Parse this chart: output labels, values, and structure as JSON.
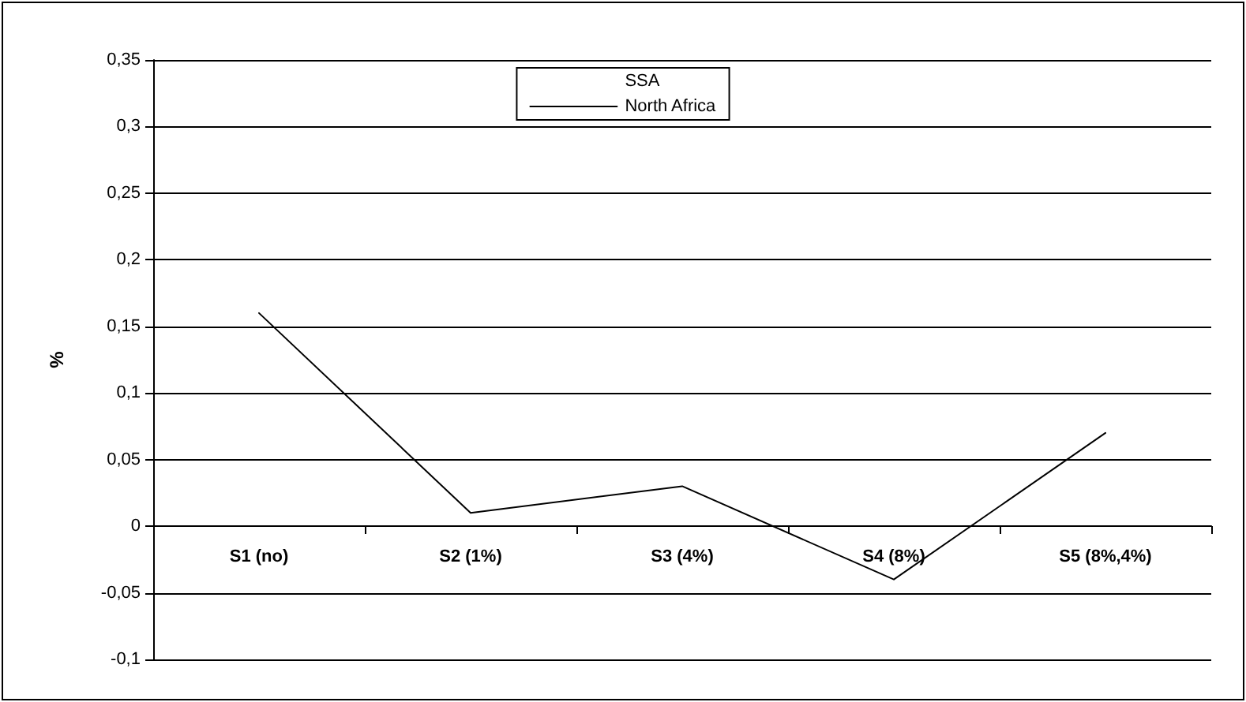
{
  "chart_data": {
    "type": "line",
    "ylabel": "%",
    "categories": [
      "S1 (no)",
      "S2 (1%)",
      "S3 (4%)",
      "S4 (8%)",
      "S5 (8%,4%)"
    ],
    "series": [
      {
        "name": "SSA",
        "values": [
          null,
          null,
          null,
          null,
          null
        ]
      },
      {
        "name": "North Africa",
        "color": "#000000",
        "values": [
          0.16,
          0.01,
          0.03,
          -0.04,
          0.07
        ]
      }
    ],
    "ylim": [
      -0.1,
      0.35
    ],
    "yticks": [
      {
        "value": -0.1,
        "label": "-0,1"
      },
      {
        "value": -0.05,
        "label": "-0,05"
      },
      0,
      {
        "value": 0.05,
        "label": "0,05"
      },
      {
        "value": 0.1,
        "label": "0,1"
      },
      {
        "value": 0.15,
        "label": "0,15"
      },
      {
        "value": 0.2,
        "label": "0,2"
      },
      {
        "value": 0.25,
        "label": "0,25"
      },
      {
        "value": 0.3,
        "label": "0,3"
      },
      {
        "value": 0.35,
        "label": "0,35"
      }
    ],
    "grid": "y",
    "legend": "top",
    "marker": "none",
    "line_style": "solid"
  }
}
